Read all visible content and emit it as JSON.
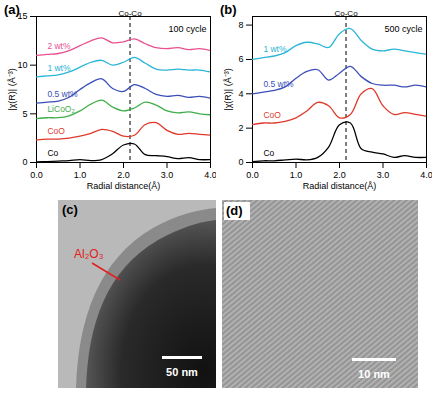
{
  "chart_data": [
    {
      "type": "line",
      "panel": "(a)",
      "title": "100 cycle",
      "x_label": "Radial distance(Å)",
      "y_label": "|χ(R)| (Å⁻³)",
      "x": [
        0,
        0.25,
        0.5,
        0.75,
        1,
        1.25,
        1.5,
        1.75,
        2,
        2.25,
        2.5,
        2.75,
        3,
        3.25,
        3.5,
        3.75,
        4
      ],
      "xlim": [
        0,
        4
      ],
      "xticks": [
        0,
        1,
        2,
        3,
        4
      ],
      "ylim": [
        0,
        15
      ],
      "yticks": [
        0,
        5,
        10,
        15
      ],
      "annotations": [
        {
          "text": "Co-Co",
          "x": 2.15,
          "line_style": "dashed"
        }
      ],
      "series": [
        {
          "name": "Co",
          "color": "#000000",
          "values": [
            0.05,
            0.1,
            0.15,
            0.2,
            0.3,
            0.2,
            0.3,
            0.9,
            1.8,
            1.9,
            0.8,
            0.7,
            0.6,
            0.4,
            0.5,
            0.3,
            0.3
          ]
        },
        {
          "name": "CoO",
          "color": "#e0392b",
          "values": [
            2.3,
            2.4,
            2.4,
            2.5,
            2.7,
            3.0,
            3.4,
            3.2,
            2.7,
            2.8,
            3.9,
            4.1,
            3.3,
            2.9,
            3.0,
            2.9,
            2.8
          ]
        },
        {
          "name": "LiCoO₂",
          "color": "#3fae49",
          "values": [
            4.5,
            4.6,
            4.6,
            4.8,
            5.3,
            6.0,
            6.4,
            5.7,
            5.3,
            5.6,
            6.2,
            5.9,
            5.3,
            5.1,
            5.2,
            5.0,
            4.9
          ]
        },
        {
          "name": "0.5 wt%",
          "color": "#3b4fb8",
          "values": [
            6.1,
            6.2,
            6.3,
            6.7,
            7.5,
            8.2,
            8.6,
            7.6,
            7.3,
            8.0,
            7.6,
            7.0,
            6.8,
            6.9,
            6.7,
            6.8,
            6.6
          ]
        },
        {
          "name": "1 wt%",
          "color": "#2bb5d8",
          "values": [
            8.8,
            8.9,
            9.0,
            9.3,
            9.8,
            10.3,
            10.5,
            10.0,
            10.3,
            10.8,
            10.2,
            9.6,
            9.5,
            9.6,
            9.5,
            9.5,
            9.3
          ]
        },
        {
          "name": "2 wt%",
          "color": "#e8508f",
          "values": [
            11.0,
            11.1,
            11.2,
            11.5,
            12.0,
            12.5,
            12.8,
            12.3,
            12.4,
            12.7,
            12.2,
            11.8,
            11.7,
            11.8,
            11.6,
            11.7,
            11.5
          ]
        }
      ]
    },
    {
      "type": "line",
      "panel": "(b)",
      "title": "500 cycle",
      "x_label": "Radial distance(Å)",
      "y_label": "|χ(R)| (Å⁻³)",
      "x": [
        0,
        0.25,
        0.5,
        0.75,
        1,
        1.25,
        1.5,
        1.75,
        2,
        2.25,
        2.5,
        2.75,
        3,
        3.25,
        3.5,
        3.75,
        4
      ],
      "xlim": [
        0,
        4
      ],
      "xticks": [
        0,
        1,
        2,
        3,
        4
      ],
      "ylim": [
        0,
        8.5
      ],
      "yticks": [
        0,
        2,
        4,
        6,
        8
      ],
      "annotations": [
        {
          "text": "Co-Co",
          "x": 2.15,
          "line_style": "dashed"
        }
      ],
      "series": [
        {
          "name": "Co",
          "color": "#000000",
          "values": [
            0.05,
            0.1,
            0.1,
            0.15,
            0.2,
            0.15,
            0.3,
            0.9,
            2.2,
            2.3,
            0.8,
            0.6,
            0.5,
            0.3,
            0.4,
            0.3,
            0.3
          ]
        },
        {
          "name": "CoO",
          "color": "#e0392b",
          "values": [
            2.2,
            2.3,
            2.3,
            2.4,
            2.6,
            3.0,
            3.5,
            3.3,
            2.6,
            2.8,
            4.0,
            4.3,
            3.3,
            2.8,
            2.9,
            2.8,
            2.7
          ]
        },
        {
          "name": "0.5 wt%",
          "color": "#3b4fb8",
          "values": [
            4.0,
            4.1,
            4.2,
            4.4,
            4.9,
            5.3,
            5.4,
            4.8,
            5.2,
            5.6,
            5.0,
            4.6,
            4.5,
            4.5,
            4.4,
            4.5,
            4.4
          ]
        },
        {
          "name": "1 wt%",
          "color": "#2bb5d8",
          "values": [
            6.0,
            6.1,
            6.2,
            6.4,
            6.8,
            7.0,
            6.9,
            6.7,
            7.5,
            7.8,
            7.1,
            6.6,
            6.5,
            6.6,
            6.5,
            6.4,
            6.3
          ]
        }
      ]
    }
  ],
  "images": [
    {
      "panel": "(c)",
      "annotation": "Al₂O₃",
      "scale_bar": "50 nm"
    },
    {
      "panel": "(d)",
      "scale_bar": "10 nm"
    }
  ]
}
